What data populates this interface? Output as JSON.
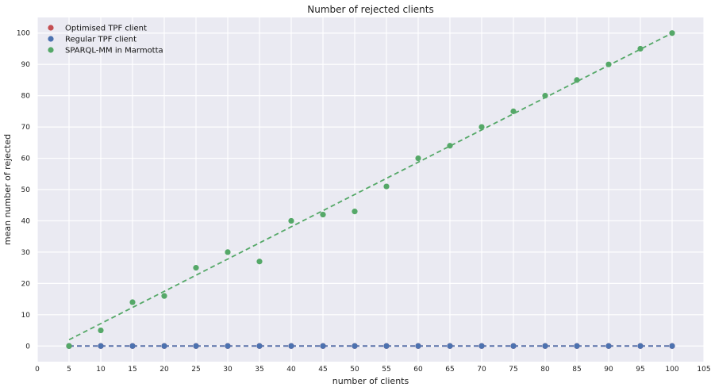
{
  "chart_data": {
    "type": "scatter",
    "title": "Number of rejected clients",
    "xlabel": "number of clients",
    "ylabel": "mean number of rejected",
    "xlim": [
      0,
      105
    ],
    "ylim": [
      -5,
      105
    ],
    "xticks": [
      0,
      5,
      10,
      15,
      20,
      25,
      30,
      35,
      40,
      45,
      50,
      55,
      60,
      65,
      70,
      75,
      80,
      85,
      90,
      95,
      100,
      105
    ],
    "yticks": [
      0,
      10,
      20,
      30,
      40,
      50,
      60,
      70,
      80,
      90,
      100
    ],
    "grid": true,
    "legend_position": "top-left",
    "background": "#eaeaf2",
    "series": [
      {
        "name": "Optimised TPF client",
        "color": "#c44e52",
        "x": [
          5,
          10,
          15,
          20,
          25,
          30,
          35,
          40,
          45,
          50,
          55,
          60,
          65,
          70,
          75,
          80,
          85,
          90,
          95,
          100
        ],
        "y": [
          0,
          0,
          0,
          0,
          0,
          0,
          0,
          0,
          0,
          0,
          0,
          0,
          0,
          0,
          0,
          0,
          0,
          0,
          0,
          0
        ],
        "trendline": [
          [
            5,
            0
          ],
          [
            100,
            0
          ]
        ]
      },
      {
        "name": "Regular TPF client",
        "color": "#4c72b0",
        "x": [
          5,
          10,
          15,
          20,
          25,
          30,
          35,
          40,
          45,
          50,
          55,
          60,
          65,
          70,
          75,
          80,
          85,
          90,
          95,
          100
        ],
        "y": [
          0,
          0,
          0,
          0,
          0,
          0,
          0,
          0,
          0,
          0,
          0,
          0,
          0,
          0,
          0,
          0,
          0,
          0,
          0,
          0
        ],
        "trendline": [
          [
            5,
            0
          ],
          [
            100,
            0
          ]
        ]
      },
      {
        "name": "SPARQL-MM in Marmotta",
        "color": "#55a868",
        "x": [
          5,
          10,
          15,
          20,
          25,
          30,
          35,
          40,
          45,
          50,
          55,
          60,
          65,
          70,
          75,
          80,
          85,
          90,
          95,
          100
        ],
        "y": [
          0,
          5,
          14,
          16,
          25,
          30,
          27,
          40,
          42,
          43,
          51,
          60,
          64,
          70,
          75,
          80,
          85,
          90,
          95,
          100
        ],
        "trendline": [
          [
            5,
            2
          ],
          [
            100,
            100
          ]
        ]
      }
    ]
  }
}
